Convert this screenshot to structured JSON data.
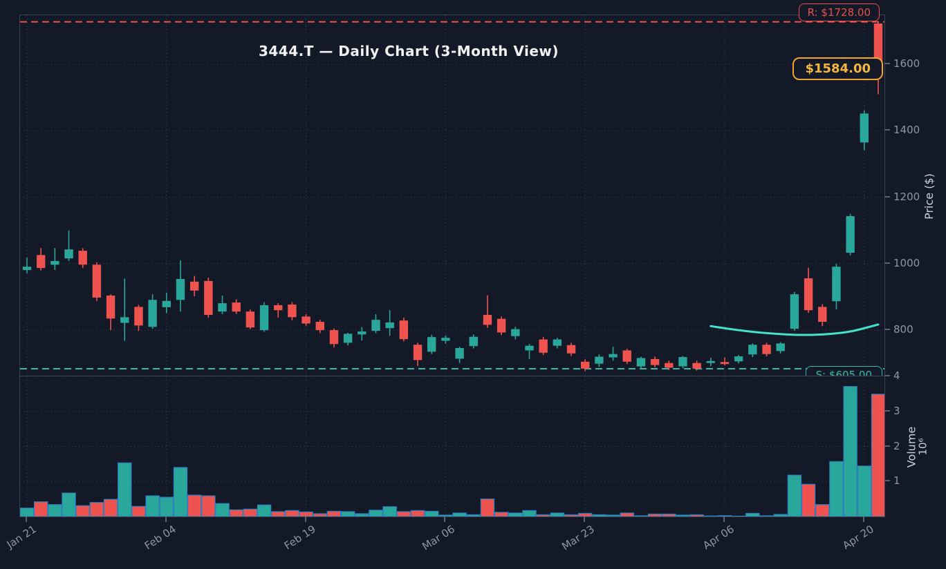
{
  "chart_data": {
    "type": "candlestick",
    "title": "3444.T — Daily Chart (3-Month View)",
    "legend_position": "none",
    "grid": "dotted",
    "price_axis": {
      "label": "Price ($)",
      "ticks": [
        800,
        1000,
        1200,
        1400,
        1600
      ],
      "ylim": [
        663,
        1748
      ]
    },
    "volume_axis": {
      "label": "Volume",
      "offset_label": "10⁶",
      "ticks": [
        1,
        2,
        3,
        4
      ],
      "ylim": [
        0,
        4
      ]
    },
    "x_axis": {
      "tick_labels": [
        "Jan 21",
        "Feb 04",
        "Feb 19",
        "Mar 06",
        "Mar 23",
        "Apr 06",
        "Apr 20"
      ],
      "tick_indices": [
        0,
        10,
        20,
        30,
        40,
        50,
        60
      ]
    },
    "annotations": {
      "resistance": {
        "label": "R: $1728.00",
        "value": 1728,
        "color": "#e9504d"
      },
      "support": {
        "label": "S: $605.00",
        "value": 605,
        "color": "#2fbfa9"
      },
      "last_price": {
        "label": "$1584.00",
        "value": 1584,
        "color": "#f5b83c"
      }
    },
    "trend_curve": {
      "color": "#43e3c7",
      "points": [
        [
          49,
          812
        ],
        [
          51,
          800
        ],
        [
          53,
          791
        ],
        [
          55,
          786
        ],
        [
          57,
          787
        ],
        [
          59,
          796
        ],
        [
          61,
          817
        ]
      ]
    },
    "colors": {
      "up": "#2aa79b",
      "down": "#ef5350",
      "volume_edge": "#2f7fbf",
      "grid": "#363d4e",
      "background": "#141927"
    },
    "columns": [
      "open",
      "high",
      "low",
      "close",
      "volume_millions"
    ],
    "candles": [
      [
        981,
        1018,
        971,
        991,
        0.24
      ],
      [
        1026,
        1047,
        980,
        987,
        0.42
      ],
      [
        997,
        1047,
        981,
        1008,
        0.34
      ],
      [
        1016,
        1100,
        1008,
        1043,
        0.67
      ],
      [
        1039,
        1047,
        987,
        997,
        0.31
      ],
      [
        997,
        1004,
        888,
        898,
        0.4
      ],
      [
        904,
        908,
        800,
        835,
        0.49
      ],
      [
        822,
        955,
        768,
        839,
        1.53
      ],
      [
        870,
        876,
        798,
        814,
        0.29
      ],
      [
        810,
        908,
        804,
        891,
        0.59
      ],
      [
        869,
        912,
        851,
        888,
        0.55
      ],
      [
        891,
        1010,
        856,
        954,
        1.4
      ],
      [
        946,
        963,
        902,
        919,
        0.61
      ],
      [
        948,
        958,
        838,
        846,
        0.59
      ],
      [
        856,
        904,
        848,
        881,
        0.37
      ],
      [
        883,
        893,
        849,
        856,
        0.19
      ],
      [
        856,
        862,
        803,
        808,
        0.21
      ],
      [
        800,
        884,
        795,
        875,
        0.33
      ],
      [
        875,
        881,
        838,
        860,
        0.14
      ],
      [
        877,
        884,
        830,
        839,
        0.17
      ],
      [
        841,
        848,
        813,
        820,
        0.13
      ],
      [
        825,
        831,
        791,
        800,
        0.08
      ],
      [
        800,
        805,
        748,
        758,
        0.15
      ],
      [
        762,
        792,
        754,
        789,
        0.14
      ],
      [
        787,
        809,
        769,
        796,
        0.08
      ],
      [
        798,
        848,
        791,
        831,
        0.18
      ],
      [
        806,
        860,
        783,
        823,
        0.28
      ],
      [
        829,
        838,
        766,
        773,
        0.14
      ],
      [
        756,
        762,
        692,
        710,
        0.17
      ],
      [
        735,
        786,
        728,
        779,
        0.15
      ],
      [
        768,
        784,
        760,
        777,
        0.04
      ],
      [
        714,
        750,
        701,
        746,
        0.1
      ],
      [
        752,
        787,
        745,
        780,
        0.05
      ],
      [
        846,
        905,
        807,
        816,
        0.5
      ],
      [
        834,
        841,
        785,
        793,
        0.12
      ],
      [
        782,
        810,
        772,
        803,
        0.1
      ],
      [
        739,
        758,
        713,
        753,
        0.17
      ],
      [
        772,
        780,
        725,
        732,
        0.05
      ],
      [
        753,
        777,
        745,
        772,
        0.1
      ],
      [
        755,
        762,
        722,
        730,
        0.05
      ],
      [
        705,
        712,
        677,
        684,
        0.09
      ],
      [
        699,
        727,
        690,
        720,
        0.05
      ],
      [
        718,
        750,
        708,
        728,
        0.04
      ],
      [
        739,
        744,
        698,
        705,
        0.1
      ],
      [
        691,
        720,
        683,
        716,
        0.02
      ],
      [
        713,
        720,
        688,
        695,
        0.07
      ],
      [
        701,
        708,
        680,
        687,
        0.07
      ],
      [
        691,
        722,
        685,
        719,
        0.04
      ],
      [
        701,
        708,
        678,
        684,
        0.05
      ],
      [
        701,
        717,
        692,
        707,
        0.015
      ],
      [
        704,
        718,
        694,
        698,
        0.025
      ],
      [
        706,
        725,
        700,
        721,
        0.01
      ],
      [
        727,
        760,
        719,
        756,
        0.09
      ],
      [
        756,
        762,
        721,
        728,
        0.02
      ],
      [
        737,
        764,
        730,
        760,
        0.06
      ],
      [
        804,
        915,
        798,
        908,
        1.18
      ],
      [
        956,
        988,
        852,
        860,
        0.92
      ],
      [
        870,
        878,
        812,
        825,
        0.34
      ],
      [
        887,
        1000,
        862,
        991,
        1.57
      ],
      [
        1033,
        1150,
        1025,
        1143,
        3.71
      ],
      [
        1365,
        1462,
        1342,
        1452,
        1.44
      ],
      [
        1723,
        1728,
        1510,
        1584,
        3.49
      ]
    ]
  }
}
